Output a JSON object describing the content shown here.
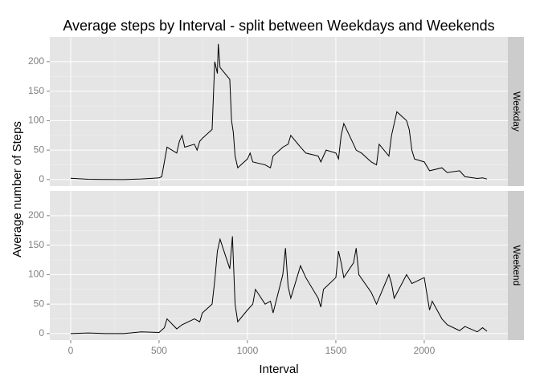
{
  "chart_data": {
    "type": "line",
    "facet": true,
    "title": "Average steps by Interval - split between Weekdays and Weekends",
    "x_label": "Interval",
    "y_label": "Average number of Steps",
    "xlim": [
      -118,
      2473
    ],
    "xticks": [
      0,
      500,
      1000,
      1500,
      2000
    ],
    "ylim": [
      -11,
      242
    ],
    "yticks": [
      0,
      50,
      100,
      150,
      200
    ],
    "grid": true,
    "series": [
      {
        "name": "Weekday",
        "color": "#000000",
        "x": [
          0,
          100,
          200,
          300,
          400,
          450,
          500,
          515,
          530,
          545,
          600,
          615,
          630,
          645,
          700,
          715,
          730,
          745,
          800,
          815,
          830,
          835,
          845,
          900,
          910,
          920,
          930,
          945,
          1000,
          1015,
          1030,
          1100,
          1130,
          1145,
          1200,
          1230,
          1245,
          1300,
          1330,
          1400,
          1415,
          1430,
          1445,
          1500,
          1515,
          1530,
          1545,
          1600,
          1615,
          1645,
          1700,
          1730,
          1745,
          1800,
          1815,
          1830,
          1845,
          1900,
          1915,
          1930,
          1945,
          2000,
          2030,
          2100,
          2130,
          2200,
          2230,
          2300,
          2330,
          2355
        ],
        "values": [
          2.3,
          0.5,
          0.2,
          0.1,
          1,
          2,
          3,
          5,
          30,
          55,
          45,
          65,
          75,
          55,
          60,
          50,
          65,
          70,
          85,
          200,
          180,
          230,
          190,
          170,
          100,
          80,
          40,
          20,
          35,
          45,
          30,
          25,
          20,
          40,
          55,
          60,
          75,
          55,
          45,
          40,
          30,
          40,
          50,
          45,
          35,
          75,
          95,
          60,
          50,
          45,
          30,
          25,
          60,
          40,
          75,
          95,
          115,
          100,
          85,
          50,
          35,
          30,
          15,
          20,
          12,
          15,
          5,
          2,
          3,
          1
        ]
      },
      {
        "name": "Weekend",
        "color": "#000000",
        "x": [
          0,
          100,
          200,
          300,
          400,
          500,
          530,
          545,
          600,
          630,
          700,
          730,
          745,
          800,
          815,
          830,
          845,
          900,
          915,
          930,
          945,
          1000,
          1030,
          1045,
          1100,
          1130,
          1145,
          1200,
          1215,
          1230,
          1245,
          1300,
          1330,
          1400,
          1415,
          1430,
          1500,
          1515,
          1530,
          1545,
          1600,
          1615,
          1630,
          1700,
          1730,
          1800,
          1815,
          1830,
          1900,
          1930,
          2000,
          2030,
          2045,
          2100,
          2130,
          2200,
          2230,
          2300,
          2330,
          2355
        ],
        "values": [
          0,
          1,
          0,
          0,
          3,
          2,
          10,
          25,
          8,
          15,
          25,
          20,
          35,
          50,
          90,
          140,
          160,
          110,
          165,
          50,
          20,
          40,
          50,
          75,
          50,
          55,
          35,
          100,
          145,
          80,
          60,
          115,
          95,
          60,
          45,
          75,
          95,
          140,
          120,
          95,
          120,
          145,
          100,
          70,
          50,
          100,
          85,
          60,
          100,
          85,
          95,
          40,
          55,
          25,
          15,
          5,
          12,
          3,
          10,
          4
        ]
      }
    ]
  }
}
